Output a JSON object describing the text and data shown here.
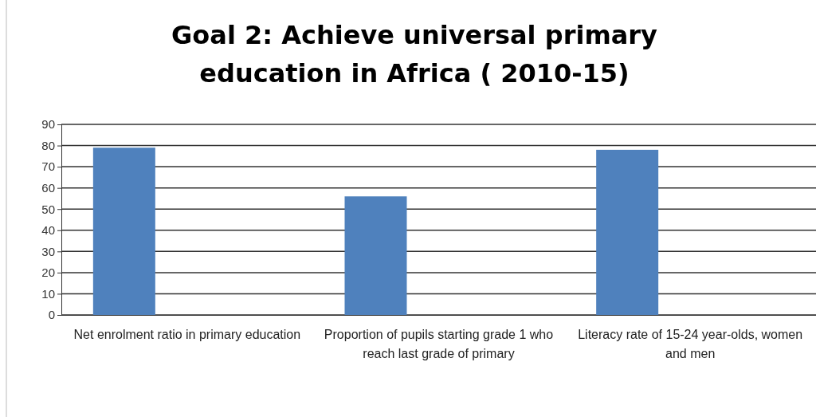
{
  "chart_data": {
    "type": "bar",
    "title": "Goal 2: Achieve universal primary education in Africa ( 2010-15)",
    "categories": [
      "Net enrolment ratio in primary education",
      "Proportion of pupils starting grade 1 who reach last grade of  primary",
      "Literacy rate of 15-24 year-olds, women and men"
    ],
    "values": [
      79,
      56,
      78
    ],
    "color": "#4f81bd",
    "ylim": [
      0,
      90
    ],
    "yticks": [
      0,
      10,
      20,
      30,
      40,
      50,
      60,
      70,
      80,
      90
    ],
    "grid": "y"
  }
}
